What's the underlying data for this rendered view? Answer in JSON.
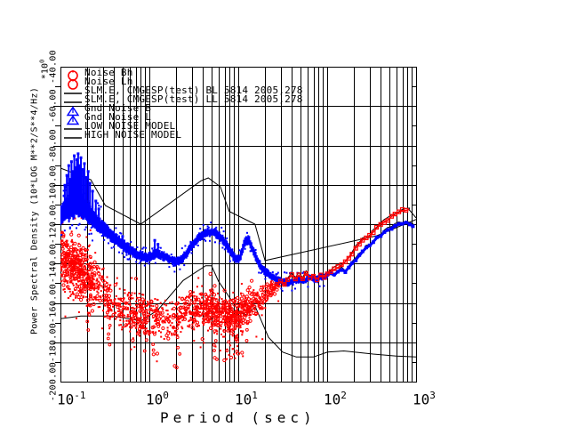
{
  "page": {
    "background": "#ffffff"
  },
  "figure": {
    "y_axis": {
      "label": "Power Spectral Density (10*LOG M**2/S**4/Hz)",
      "multiplier_base": "*10",
      "multiplier_exp": "0",
      "tick_labels": [
        "-40.00",
        "-60.00",
        "-80.00",
        "-100.00",
        "-120.00",
        "-140.00",
        "-160.00",
        "-180.00",
        "-200.00"
      ]
    },
    "x_axis": {
      "label": "Period (sec)",
      "ticks": [
        {
          "base": "10",
          "exp": "-1"
        },
        {
          "base": "10",
          "exp": "0"
        },
        {
          "base": "10",
          "exp": "1"
        },
        {
          "base": "10",
          "exp": "2"
        },
        {
          "base": "10",
          "exp": "3"
        }
      ]
    },
    "legend": [
      {
        "label": "Noise Bh",
        "marker": "red-ring"
      },
      {
        "label": "Noise Lh",
        "marker": "red-ring"
      },
      {
        "label": "SLM.E, CMGESP(test) BL 5814 2005,278",
        "marker": "black-line"
      },
      {
        "label": "SLM.E, CMGESP(test) LL 5814 2005,278",
        "marker": "black-line"
      },
      {
        "label": "Gnd Noise B",
        "marker": "blue-triangle"
      },
      {
        "label": "Gnd Noise L",
        "marker": "blue-triangle"
      },
      {
        "label": "LOW NOISE MODEL",
        "marker": "black-line"
      },
      {
        "label": "HIGH NOISE MODEL",
        "marker": "black-line"
      }
    ]
  },
  "chart_data": {
    "type": "line",
    "x_scale": "log",
    "xlim": [
      0.1,
      1000
    ],
    "ylim": [
      -200,
      -40
    ],
    "xlabel": "Period (sec)",
    "ylabel": "Power Spectral Density (10*LOG M**2/S**4/Hz) *10^0",
    "grid": true,
    "y_grid_step_db": 20,
    "colors": {
      "red": "#ff0000",
      "blue": "#0000ff",
      "black": "#000000"
    },
    "series": [
      {
        "name": "Gnd Noise B",
        "type": "band",
        "color": "#0000ff",
        "midline": [
          [
            0.1,
            -116
          ],
          [
            0.11,
            -113
          ],
          [
            0.12,
            -111
          ],
          [
            0.125,
            -114
          ],
          [
            0.13,
            -110
          ],
          [
            0.14,
            -112
          ],
          [
            0.15,
            -109
          ],
          [
            0.16,
            -111
          ],
          [
            0.17,
            -110
          ],
          [
            0.18,
            -113
          ],
          [
            0.19,
            -112
          ],
          [
            0.21,
            -115
          ],
          [
            0.23,
            -117
          ],
          [
            0.25,
            -119
          ],
          [
            0.28,
            -121
          ],
          [
            0.32,
            -123
          ],
          [
            0.36,
            -125
          ],
          [
            0.4,
            -127
          ],
          [
            0.46,
            -129
          ],
          [
            0.52,
            -131
          ],
          [
            0.6,
            -133
          ],
          [
            0.7,
            -135
          ],
          [
            0.8,
            -136
          ],
          [
            0.92,
            -137
          ],
          [
            1.05,
            -136
          ],
          [
            1.2,
            -135
          ],
          [
            1.4,
            -136
          ],
          [
            1.6,
            -137
          ],
          [
            1.85,
            -139
          ],
          [
            2.1,
            -139
          ],
          [
            2.4,
            -137
          ],
          [
            2.7,
            -134
          ],
          [
            3.0,
            -131
          ],
          [
            3.4,
            -128
          ],
          [
            3.8,
            -126
          ],
          [
            4.2,
            -125
          ],
          [
            4.7,
            -124
          ],
          [
            5.2,
            -124
          ],
          [
            5.8,
            -125
          ],
          [
            6.5,
            -127
          ],
          [
            7.2,
            -130
          ],
          [
            8.0,
            -133
          ],
          [
            8.8,
            -136
          ],
          [
            9.6,
            -138
          ],
          [
            10.5,
            -137
          ],
          [
            11.5,
            -131
          ],
          [
            12.3,
            -128
          ],
          [
            13.2,
            -128
          ],
          [
            14.2,
            -132
          ],
          [
            15.5,
            -136
          ],
          [
            17.0,
            -140
          ],
          [
            19.0,
            -143
          ],
          [
            21.0,
            -145
          ],
          [
            24.0,
            -147
          ],
          [
            27.0,
            -148
          ],
          [
            31.0,
            -149
          ],
          [
            36.0,
            -150
          ],
          [
            42.0,
            -149
          ],
          [
            48.0,
            -148
          ],
          [
            55.0,
            -149
          ],
          [
            63.0,
            -147
          ],
          [
            72.0,
            -148
          ],
          [
            82.0,
            -147
          ],
          [
            92.0,
            -147
          ],
          [
            100,
            -146
          ]
        ],
        "halfwidth_db": [
          [
            0.1,
            5
          ],
          [
            0.14,
            6
          ],
          [
            0.2,
            5
          ],
          [
            0.28,
            3.5
          ],
          [
            0.45,
            2.8
          ],
          [
            0.8,
            2.2
          ],
          [
            1.5,
            2.0
          ],
          [
            3,
            2.0
          ],
          [
            6,
            2.0
          ],
          [
            12,
            2.2
          ],
          [
            20,
            1.8
          ],
          [
            50,
            1.5
          ],
          [
            100,
            1.4
          ]
        ],
        "spikes": [
          [
            0.112,
            -100
          ],
          [
            0.118,
            -95
          ],
          [
            0.124,
            -90
          ],
          [
            0.128,
            -97
          ],
          [
            0.133,
            -88
          ],
          [
            0.138,
            -93
          ],
          [
            0.143,
            -85
          ],
          [
            0.148,
            -91
          ],
          [
            0.153,
            -87
          ],
          [
            0.158,
            -84
          ],
          [
            0.164,
            -90
          ],
          [
            0.17,
            -86
          ],
          [
            0.178,
            -92
          ],
          [
            0.186,
            -89
          ],
          [
            0.195,
            -96
          ],
          [
            0.205,
            -93
          ],
          [
            0.215,
            -99
          ],
          [
            0.23,
            -103
          ],
          [
            0.25,
            -108
          ],
          [
            0.27,
            -112
          ],
          [
            0.5,
            -126
          ],
          [
            1.15,
            -128
          ],
          [
            1.25,
            -130
          ]
        ]
      },
      {
        "name": "Gnd Noise L",
        "type": "line-markers",
        "color": "#0000ff",
        "marker": "square-filled",
        "points": [
          [
            100,
            -146
          ],
          [
            110,
            -145
          ],
          [
            120,
            -146
          ],
          [
            132,
            -144
          ],
          [
            145,
            -143
          ],
          [
            160,
            -144
          ],
          [
            175,
            -142
          ],
          [
            190,
            -140
          ],
          [
            210,
            -138
          ],
          [
            230,
            -136
          ],
          [
            250,
            -134
          ],
          [
            275,
            -132
          ],
          [
            300,
            -131
          ],
          [
            330,
            -129
          ],
          [
            360,
            -127
          ],
          [
            400,
            -126
          ],
          [
            440,
            -124
          ],
          [
            480,
            -123
          ],
          [
            530,
            -122
          ],
          [
            580,
            -121
          ],
          [
            640,
            -120
          ],
          [
            700,
            -120
          ],
          [
            770,
            -119
          ],
          [
            850,
            -120
          ],
          [
            920,
            -121
          ]
        ]
      },
      {
        "name": "Noise Bh",
        "type": "scatter-cloud",
        "color": "#ff0000",
        "envelope": [
          [
            0.1,
            -138,
            16,
            3.0
          ],
          [
            0.12,
            -140,
            17,
            3.0
          ],
          [
            0.15,
            -143,
            16,
            3.0
          ],
          [
            0.18,
            -145,
            15,
            3.0
          ],
          [
            0.22,
            -148,
            14,
            2.0
          ],
          [
            0.28,
            -152,
            14,
            1.2
          ],
          [
            0.35,
            -158,
            13,
            0.8
          ],
          [
            0.45,
            -162,
            13,
            0.8
          ],
          [
            0.6,
            -165,
            12,
            1.5
          ],
          [
            0.8,
            -167,
            12,
            1.5
          ],
          [
            1.0,
            -166,
            12,
            1.2
          ],
          [
            1.3,
            -168,
            11,
            0.8
          ],
          [
            1.7,
            -168,
            11,
            0.8
          ],
          [
            2.2,
            -167,
            11,
            0.9
          ],
          [
            3.0,
            -164,
            11,
            1.3
          ],
          [
            4.0,
            -162,
            11,
            1.6
          ],
          [
            5.0,
            -163,
            11,
            2.0
          ],
          [
            6.5,
            -166,
            11,
            2.2
          ],
          [
            8.0,
            -168,
            10,
            2.2
          ],
          [
            10.0,
            -167,
            10,
            2.0
          ],
          [
            12.0,
            -163,
            9,
            1.6
          ],
          [
            15.0,
            -160,
            8,
            1.4
          ],
          [
            19.0,
            -157,
            7,
            1.2
          ],
          [
            24.0,
            -153,
            5,
            0.9
          ],
          [
            29.0,
            -150,
            3,
            0.6
          ]
        ],
        "streaks": [
          [
            0.21,
            -178
          ],
          [
            0.35,
            -182
          ],
          [
            0.9,
            -188
          ],
          [
            1.1,
            -184
          ],
          [
            2.1,
            -186
          ],
          [
            5.5,
            -190
          ],
          [
            7.5,
            -188
          ],
          [
            9.5,
            -186
          ],
          [
            13.0,
            -182
          ]
        ]
      },
      {
        "name": "Noise Lh",
        "type": "line-markers",
        "color": "#ff0000",
        "marker": "square-open",
        "points": [
          [
            27,
            -151
          ],
          [
            30,
            -149
          ],
          [
            33,
            -151
          ],
          [
            36,
            -148
          ],
          [
            40,
            -146
          ],
          [
            44,
            -148
          ],
          [
            48,
            -146
          ],
          [
            53,
            -148
          ],
          [
            58,
            -145
          ],
          [
            64,
            -147
          ],
          [
            70,
            -146
          ],
          [
            77,
            -148
          ],
          [
            85,
            -146
          ],
          [
            93,
            -147
          ],
          [
            100,
            -145
          ],
          [
            110,
            -144
          ],
          [
            120,
            -143
          ],
          [
            132,
            -142
          ],
          [
            145,
            -141
          ],
          [
            160,
            -139
          ],
          [
            175,
            -137
          ],
          [
            190,
            -135
          ],
          [
            210,
            -132
          ],
          [
            230,
            -130
          ],
          [
            250,
            -128
          ],
          [
            275,
            -127
          ],
          [
            300,
            -126
          ],
          [
            330,
            -124
          ],
          [
            360,
            -122
          ],
          [
            400,
            -120
          ],
          [
            440,
            -119
          ],
          [
            480,
            -118
          ],
          [
            530,
            -116
          ],
          [
            580,
            -115
          ],
          [
            640,
            -114
          ],
          [
            700,
            -113
          ],
          [
            770,
            -113
          ],
          [
            840,
            -112.5
          ]
        ]
      },
      {
        "name": "SLM.E, CMGESP(test) BL",
        "type": "line-jitter",
        "color": "#000000",
        "offset_db": 0.8,
        "follow": "Noise Lh",
        "extra_points": [
          [
            840,
            -112.5
          ],
          [
            900,
            -114
          ],
          [
            1000,
            -116.5
          ]
        ]
      },
      {
        "name": "SLM.E, CMGESP(test) LL",
        "type": "line-jitter",
        "color": "#000000",
        "offset_db": 0.8,
        "follow": "Gnd Noise L",
        "lead_points": [
          [
            22,
            -146
          ],
          [
            25,
            -148
          ],
          [
            30,
            -149
          ],
          [
            36,
            -150
          ],
          [
            42,
            -149
          ],
          [
            48,
            -148
          ],
          [
            55,
            -149
          ],
          [
            63,
            -147
          ],
          [
            72,
            -148
          ],
          [
            82,
            -147
          ],
          [
            92,
            -147
          ]
        ],
        "extra_points": [
          [
            920,
            -121
          ],
          [
            950,
            -121.5
          ]
        ]
      },
      {
        "name": "LOW NOISE MODEL",
        "type": "line",
        "color": "#000000",
        "points": [
          [
            0.1,
            -168.0
          ],
          [
            0.17,
            -166.7
          ],
          [
            0.4,
            -166.7
          ],
          [
            0.8,
            -169.2
          ],
          [
            1.24,
            -163.7
          ],
          [
            2.4,
            -148.6
          ],
          [
            4.3,
            -141.1
          ],
          [
            5.0,
            -141.1
          ],
          [
            6.0,
            -149.0
          ],
          [
            10.0,
            -163.8
          ],
          [
            12.0,
            -166.2
          ],
          [
            15.6,
            -162.1
          ],
          [
            21.9,
            -177.5
          ],
          [
            31.6,
            -185.0
          ],
          [
            45.0,
            -187.5
          ],
          [
            70.0,
            -187.5
          ],
          [
            101.0,
            -185.0
          ],
          [
            154.0,
            -184.4
          ],
          [
            328.0,
            -186.0
          ],
          [
            600.0,
            -187.0
          ],
          [
            1000,
            -187.5
          ]
        ]
      },
      {
        "name": "HIGH NOISE MODEL",
        "type": "line",
        "color": "#000000",
        "points": [
          [
            0.1,
            -91.5
          ],
          [
            0.22,
            -97.4
          ],
          [
            0.32,
            -110.5
          ],
          [
            0.8,
            -120.0
          ],
          [
            3.8,
            -98.0
          ],
          [
            4.6,
            -96.5
          ],
          [
            6.3,
            -101.0
          ],
          [
            7.9,
            -113.5
          ],
          [
            15.4,
            -120.0
          ],
          [
            20.0,
            -138.5
          ],
          [
            354.8,
            -126.0
          ],
          [
            1000,
            -117.6
          ]
        ]
      }
    ]
  }
}
